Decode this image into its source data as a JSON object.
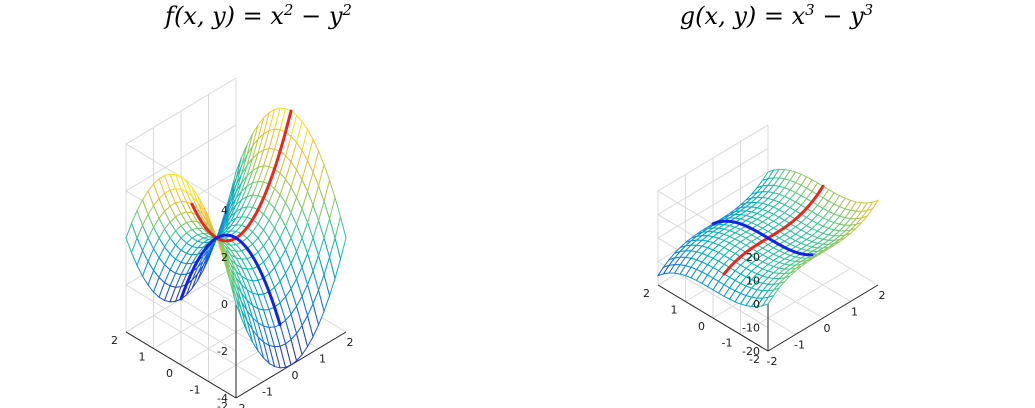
{
  "chart_data": [
    {
      "type": "surface",
      "title": {
        "func": "f",
        "args": "(x, y)",
        "eq": " = x",
        "e1": "2",
        "mid": " − y",
        "e2": "2"
      },
      "function": "x^2 - y^2",
      "x_range": [
        -2,
        2
      ],
      "y_range": [
        -2,
        2
      ],
      "zlim": [
        -4,
        4
      ],
      "x_ticks": [
        "-2",
        "-1",
        "0",
        "1",
        "2"
      ],
      "y_ticks": [
        "-2",
        "-1",
        "0",
        "1",
        "2"
      ],
      "z_ticks": [
        "-4",
        "-2",
        "0",
        "2",
        "4"
      ],
      "z_tick_values": [
        -4,
        -2,
        0,
        2,
        4
      ],
      "grid_resolution": 21,
      "grid": true,
      "highlight_curves": [
        {
          "name": "",
          "color": "#e8281e",
          "along": "x",
          "fixed": 0,
          "from": -1.6,
          "to": 2,
          "points": [
            [
              -1.6,
              2.56
            ],
            [
              -0.8,
              0.64
            ],
            [
              0,
              0
            ],
            [
              0.8,
              0.64
            ],
            [
              1.6,
              2.56
            ],
            [
              2,
              4
            ]
          ]
        },
        {
          "name": "",
          "color": "#1024e8",
          "along": "y",
          "fixed": 0,
          "from": -1.6,
          "to": 2,
          "points": [
            [
              -1.6,
              -2.56
            ],
            [
              -0.8,
              -0.64
            ],
            [
              0,
              0
            ],
            [
              0.8,
              -0.64
            ],
            [
              1.6,
              -2.56
            ],
            [
              2,
              -4
            ]
          ]
        }
      ],
      "colormap": "parula"
    },
    {
      "type": "surface",
      "title": {
        "func": "g",
        "args": "(x, y)",
        "eq": " = x",
        "e1": "3",
        "mid": " − y",
        "e2": "3"
      },
      "function": "x^3 - y^3",
      "x_range": [
        -2,
        2
      ],
      "y_range": [
        -2,
        2
      ],
      "zlim": [
        -20,
        20
      ],
      "x_ticks": [
        "-2",
        "-1",
        "0",
        "1",
        "2"
      ],
      "y_ticks": [
        "-2",
        "-1",
        "0",
        "1",
        "2"
      ],
      "z_ticks": [
        "-20",
        "-10",
        "0",
        "10",
        "20"
      ],
      "z_tick_values": [
        -20,
        -10,
        0,
        10,
        20
      ],
      "grid_resolution": 21,
      "grid": true,
      "highlight_curves": [
        {
          "name": "",
          "color": "#e8281e",
          "along": "x",
          "fixed": 0,
          "from": -1.6,
          "to": 2,
          "points": [
            [
              -1.6,
              -4.1
            ],
            [
              -0.8,
              -0.51
            ],
            [
              0,
              0
            ],
            [
              0.8,
              0.51
            ],
            [
              1.6,
              4.1
            ],
            [
              2,
              8
            ]
          ]
        },
        {
          "name": "",
          "color": "#1024e8",
          "along": "y",
          "fixed": 0,
          "from": -1.6,
          "to": 2,
          "points": [
            [
              -1.6,
              4.1
            ],
            [
              -0.8,
              0.51
            ],
            [
              0,
              0
            ],
            [
              0.8,
              -0.51
            ],
            [
              1.6,
              -4.1
            ],
            [
              2,
              -8
            ]
          ]
        }
      ],
      "colormap": "parula"
    }
  ]
}
